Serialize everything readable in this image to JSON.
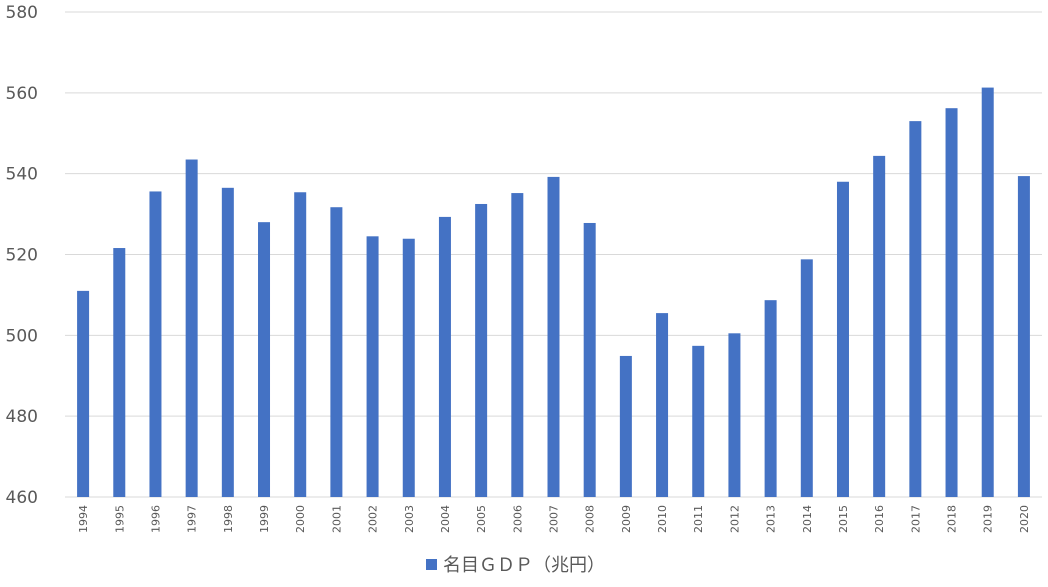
{
  "chart_data": {
    "type": "bar",
    "categories": [
      "1994",
      "1995",
      "1996",
      "1997",
      "1998",
      "1999",
      "2000",
      "2001",
      "2002",
      "2003",
      "2004",
      "2005",
      "2006",
      "2007",
      "2008",
      "2009",
      "2010",
      "2011",
      "2012",
      "2013",
      "2014",
      "2015",
      "2016",
      "2017",
      "2018",
      "2019",
      "2020"
    ],
    "series": [
      {
        "name": "名目ＧＤＰ（兆円）",
        "color": "#4472C4",
        "values": [
          511.0,
          521.6,
          535.6,
          543.5,
          536.5,
          528.0,
          535.4,
          531.7,
          524.5,
          523.9,
          529.3,
          532.5,
          535.2,
          539.2,
          527.8,
          494.9,
          505.5,
          497.4,
          500.5,
          508.7,
          518.8,
          538.0,
          544.4,
          553.0,
          556.2,
          561.3,
          539.4
        ]
      }
    ],
    "ylim": [
      460,
      580
    ],
    "yticks": [
      460,
      480,
      500,
      520,
      540,
      560,
      580
    ],
    "grid": true,
    "legend_position": "bottom"
  }
}
